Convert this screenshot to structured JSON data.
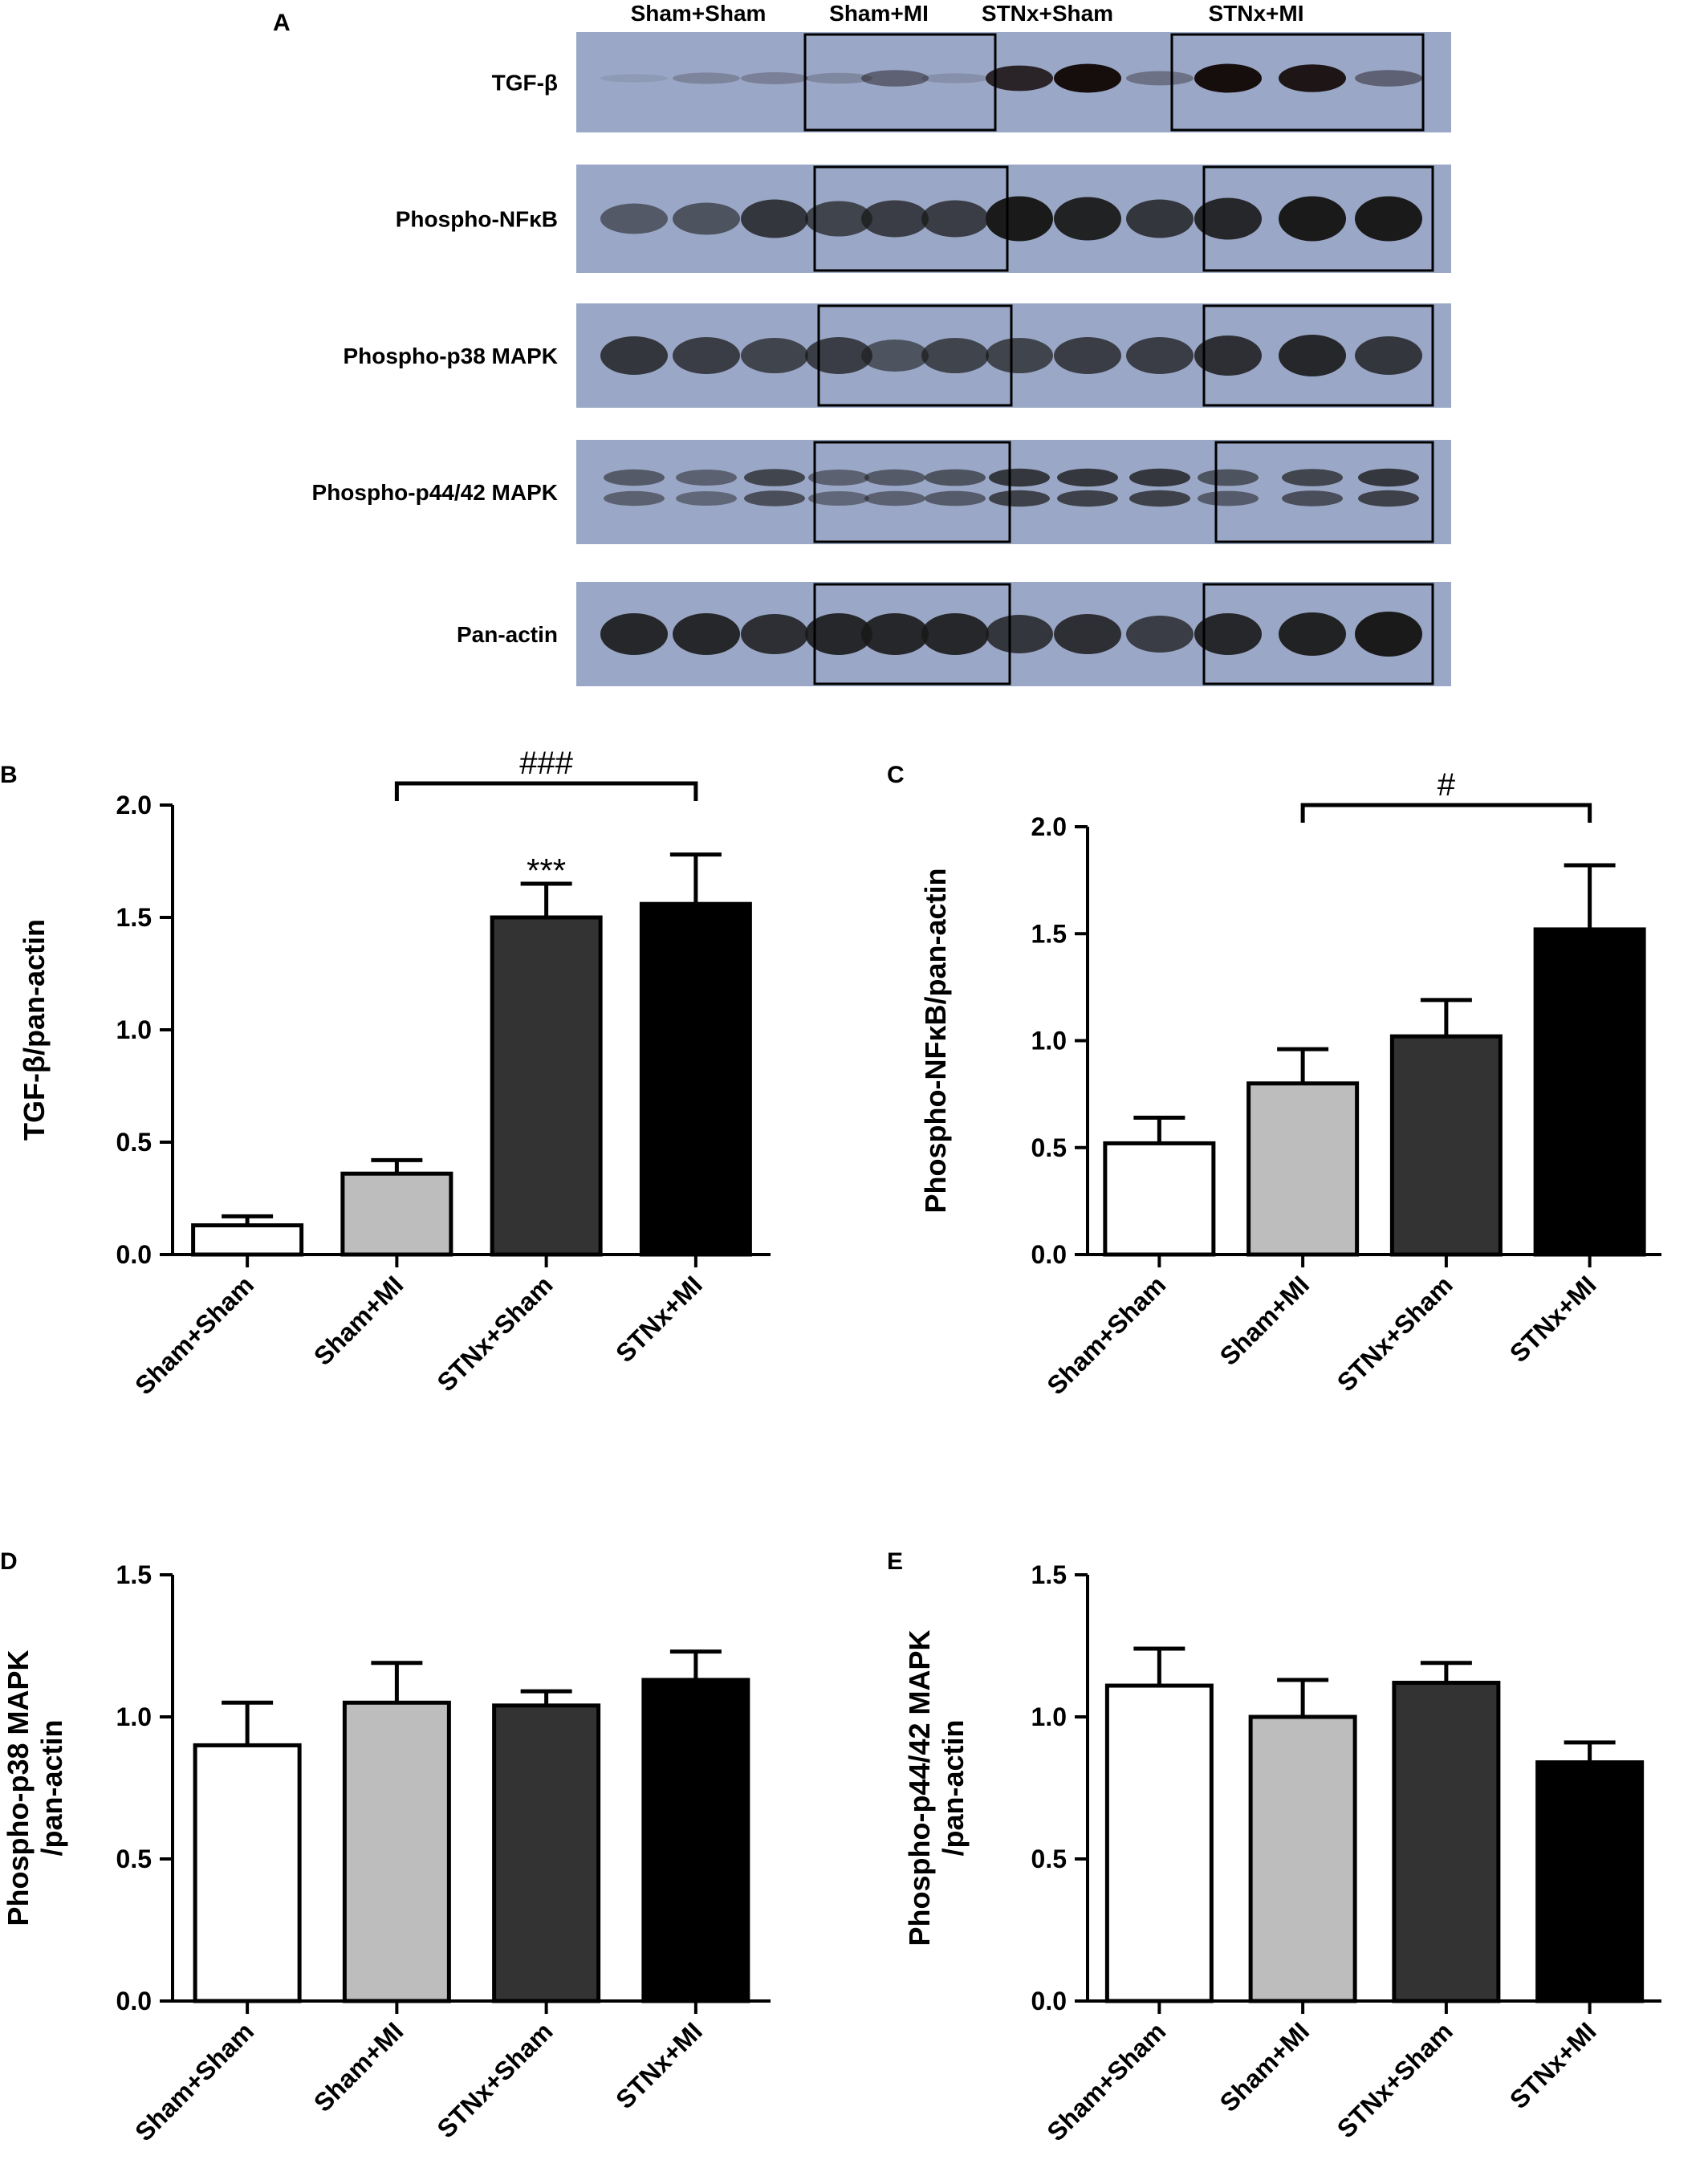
{
  "panel_labels": {
    "A": "A",
    "B": "B",
    "C": "C",
    "D": "D",
    "E": "E"
  },
  "blot": {
    "group_labels": [
      "Sham+Sham",
      "Sham+MI",
      "STNx+Sham",
      "STNx+MI"
    ],
    "rows": [
      {
        "label": "TGF-β",
        "intensity": [
          [
            0.08,
            0.22,
            0.25
          ],
          [
            0.2,
            0.45,
            0.15
          ],
          [
            0.85,
            1.0,
            0.35
          ],
          [
            1.0,
            0.95,
            0.45
          ]
        ],
        "style": "thin"
      },
      {
        "label": "Phospho-NFκB",
        "intensity": [
          [
            0.55,
            0.6,
            0.8
          ],
          [
            0.7,
            0.75,
            0.75
          ],
          [
            1.0,
            0.95,
            0.8
          ],
          [
            0.9,
            1.0,
            1.0
          ]
        ],
        "style": "band"
      },
      {
        "label": "Phospho-p38 MAPK",
        "intensity": [
          [
            0.8,
            0.75,
            0.7
          ],
          [
            0.75,
            0.6,
            0.7
          ],
          [
            0.7,
            0.75,
            0.75
          ],
          [
            0.85,
            0.9,
            0.8
          ]
        ],
        "style": "band"
      },
      {
        "label": "Phospho-p44/42 MAPK",
        "intensity": [
          [
            0.55,
            0.5,
            0.7
          ],
          [
            0.5,
            0.55,
            0.6
          ],
          [
            0.8,
            0.8,
            0.8
          ],
          [
            0.6,
            0.7,
            0.8
          ]
        ],
        "style": "double"
      },
      {
        "label": "Pan-actin",
        "intensity": [
          [
            0.9,
            0.9,
            0.85
          ],
          [
            0.9,
            0.9,
            0.9
          ],
          [
            0.8,
            0.85,
            0.75
          ],
          [
            0.9,
            0.95,
            1.0
          ]
        ],
        "style": "band"
      }
    ]
  },
  "chart_data": [
    {
      "panel": "B",
      "type": "bar",
      "categories": [
        "Sham+Sham",
        "Sham+MI",
        "STNx+Sham",
        "STNx+MI"
      ],
      "values": [
        0.13,
        0.36,
        1.5,
        1.56
      ],
      "errors": [
        0.04,
        0.06,
        0.15,
        0.22
      ],
      "colors": [
        "#ffffff",
        "#bdbdbd",
        "#333333",
        "#000000"
      ],
      "ylabel": "TGF-β/pan-actin",
      "xlabel": "",
      "ylim": [
        0,
        2.0
      ],
      "yticks": [
        "0.0",
        "0.5",
        "1.0",
        "1.5",
        "2.0"
      ],
      "annotations": [
        {
          "type": "bar_marker",
          "bar": 2,
          "text": "***"
        },
        {
          "type": "bracket",
          "from": 1,
          "to": 3,
          "text": "###"
        }
      ]
    },
    {
      "panel": "C",
      "type": "bar",
      "categories": [
        "Sham+Sham",
        "Sham+MI",
        "STNx+Sham",
        "STNx+MI"
      ],
      "values": [
        0.52,
        0.8,
        1.02,
        1.52
      ],
      "errors": [
        0.12,
        0.16,
        0.17,
        0.3
      ],
      "colors": [
        "#ffffff",
        "#bdbdbd",
        "#333333",
        "#000000"
      ],
      "ylabel": "Phospho-NFκB/pan-actin",
      "xlabel": "",
      "ylim": [
        0,
        2.0
      ],
      "yticks": [
        "0.0",
        "0.5",
        "1.0",
        "1.5",
        "2.0"
      ],
      "annotations": [
        {
          "type": "bracket",
          "from": 1,
          "to": 3,
          "text": "#"
        }
      ]
    },
    {
      "panel": "D",
      "type": "bar",
      "categories": [
        "Sham+Sham",
        "Sham+MI",
        "STNx+Sham",
        "STNx+MI"
      ],
      "values": [
        0.9,
        1.05,
        1.04,
        1.13
      ],
      "errors": [
        0.15,
        0.14,
        0.05,
        0.1
      ],
      "colors": [
        "#ffffff",
        "#bdbdbd",
        "#333333",
        "#000000"
      ],
      "ylabel": [
        "Phospho-p38 MAPK",
        "/pan-actin"
      ],
      "xlabel": "",
      "ylim": [
        0,
        1.5
      ],
      "yticks": [
        "0.0",
        "0.5",
        "1.0",
        "1.5"
      ],
      "annotations": []
    },
    {
      "panel": "E",
      "type": "bar",
      "categories": [
        "Sham+Sham",
        "Sham+MI",
        "STNx+Sham",
        "STNx+MI"
      ],
      "values": [
        1.11,
        1.0,
        1.12,
        0.84
      ],
      "errors": [
        0.13,
        0.13,
        0.07,
        0.07
      ],
      "colors": [
        "#ffffff",
        "#bdbdbd",
        "#333333",
        "#000000"
      ],
      "ylabel": [
        "Phospho-p44/42 MAPK",
        "/pan-actin"
      ],
      "xlabel": "",
      "ylim": [
        0,
        1.5
      ],
      "yticks": [
        "0.0",
        "0.5",
        "1.0",
        "1.5"
      ],
      "annotations": []
    }
  ]
}
